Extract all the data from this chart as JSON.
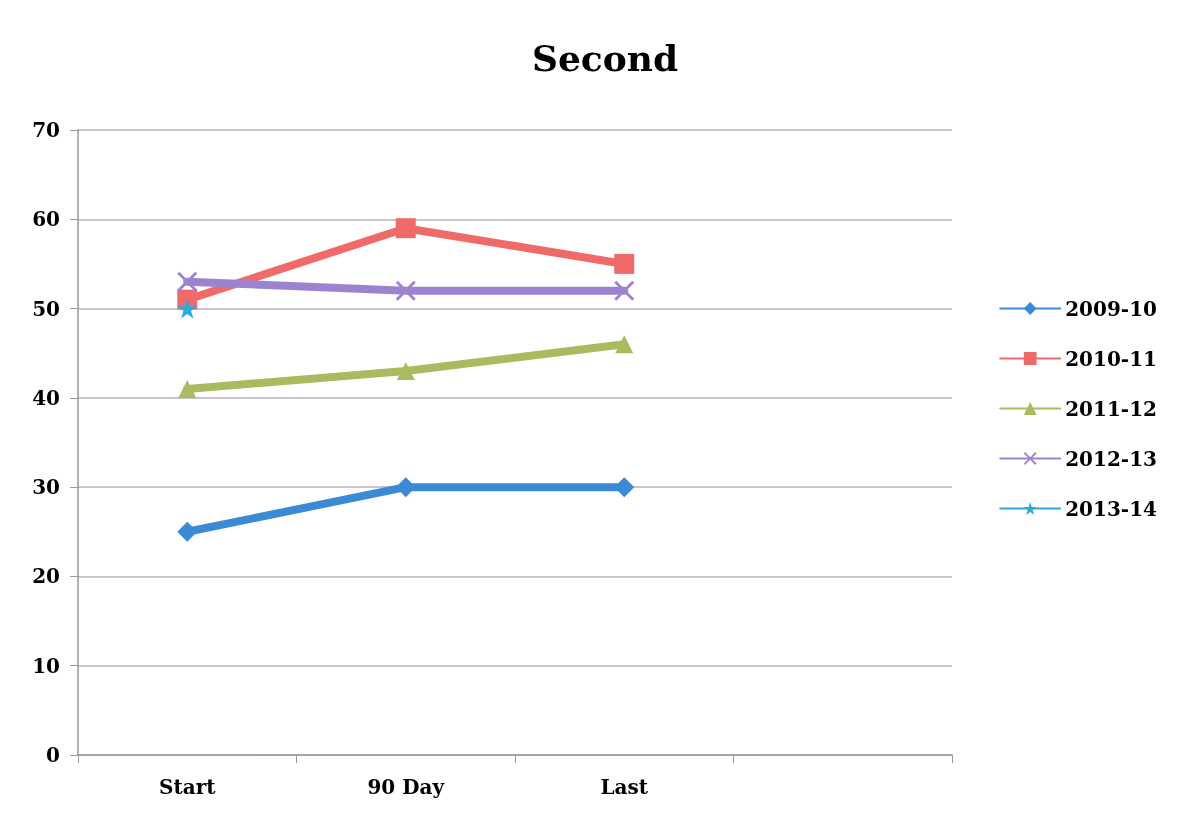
{
  "chart_data": {
    "type": "line",
    "title": "Second",
    "categories": [
      "Start",
      "90 Day",
      "Last",
      null
    ],
    "series": [
      {
        "name": "2009-10",
        "color": "#3a8ad6",
        "marker": "diamond",
        "values": [
          25,
          30,
          30,
          null
        ]
      },
      {
        "name": "2010-11",
        "color": "#f06a6a",
        "marker": "square",
        "values": [
          51,
          59,
          55,
          null
        ]
      },
      {
        "name": "2011-12",
        "color": "#a8bb5e",
        "marker": "triangle",
        "values": [
          41,
          43,
          46,
          null
        ]
      },
      {
        "name": "2012-13",
        "color": "#9d83cf",
        "marker": "cross",
        "values": [
          53,
          52,
          52,
          null
        ]
      },
      {
        "name": "2013-14",
        "color": "#2ea9dc",
        "marker": "star",
        "values": [
          50,
          null,
          null,
          null
        ]
      }
    ],
    "ylim": [
      0,
      70
    ],
    "yticks": [
      0,
      10,
      20,
      30,
      40,
      50,
      60,
      70
    ],
    "grid": "y",
    "legend": "right",
    "line_style": "solid"
  }
}
